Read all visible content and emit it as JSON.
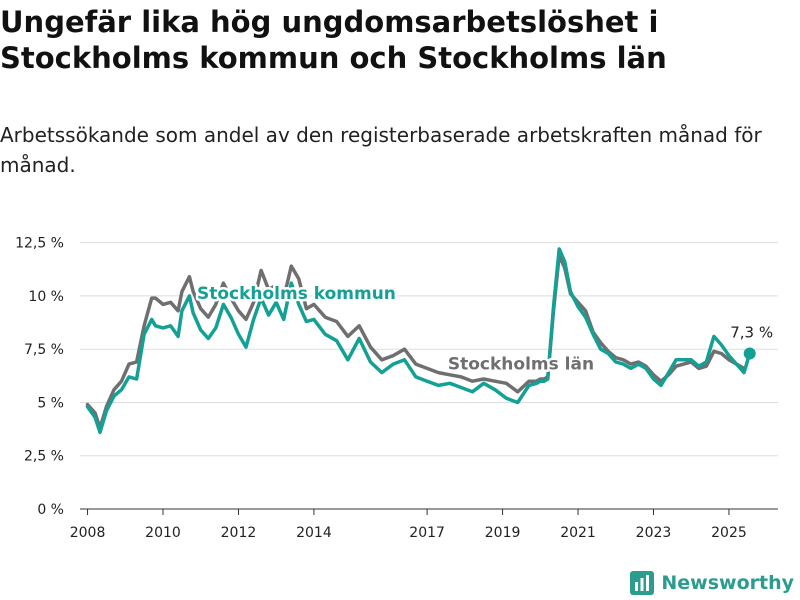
{
  "title": "Ungefär lika hög ungdomsarbetslöshet i Stockholms kommun och Stockholms län",
  "subtitle": "Arbetssökande som andel av den registerbaserade arbetskraften månad för månad.",
  "logo_text": "Newsworthy",
  "colors": {
    "kommun": "#13a095",
    "lan": "#6f6f6f",
    "grid": "#dddddd",
    "logo": "#2a9d8f"
  },
  "chart_data": {
    "type": "line",
    "title": "",
    "xlabel": "",
    "ylabel": "",
    "ylim": [
      0,
      13
    ],
    "yticks": [
      0,
      2.5,
      5,
      7.5,
      10,
      12.5
    ],
    "ytick_labels": [
      "0 %",
      "2,5 %",
      "5 %",
      "7,5 %",
      "10 %",
      "12,5 %"
    ],
    "xticks": [
      2008,
      2010,
      2012,
      2014,
      2017,
      2019,
      2021,
      2023,
      2025
    ],
    "xtick_labels": [
      "2008",
      "2010",
      "2012",
      "2014",
      "2017",
      "2019",
      "2021",
      "2023",
      "2025"
    ],
    "xlim": [
      2007.8,
      2026.3
    ],
    "grid": true,
    "end_label": "7,3 %",
    "series": [
      {
        "name": "Stockholms län",
        "key": "lan",
        "x": [
          2008.0,
          2008.2,
          2008.33,
          2008.5,
          2008.7,
          2008.9,
          2009.1,
          2009.3,
          2009.5,
          2009.7,
          2009.8,
          2010.0,
          2010.2,
          2010.4,
          2010.5,
          2010.7,
          2010.8,
          2011.0,
          2011.2,
          2011.4,
          2011.6,
          2011.8,
          2012.0,
          2012.2,
          2012.4,
          2012.6,
          2012.8,
          2013.0,
          2013.2,
          2013.4,
          2013.6,
          2013.8,
          2014.0,
          2014.3,
          2014.6,
          2014.9,
          2015.2,
          2015.5,
          2015.8,
          2016.1,
          2016.4,
          2016.7,
          2017.0,
          2017.3,
          2017.6,
          2017.9,
          2018.2,
          2018.5,
          2018.8,
          2019.1,
          2019.4,
          2019.7,
          2019.9,
          2020.0,
          2020.1,
          2020.2,
          2020.35,
          2020.5,
          2020.65,
          2020.8,
          2021.0,
          2021.2,
          2021.4,
          2021.6,
          2021.8,
          2022.0,
          2022.2,
          2022.4,
          2022.6,
          2022.8,
          2023.0,
          2023.2,
          2023.4,
          2023.6,
          2023.8,
          2024.0,
          2024.2,
          2024.4,
          2024.6,
          2024.8,
          2025.0,
          2025.2,
          2025.4
        ],
        "y": [
          4.9,
          4.5,
          3.8,
          4.8,
          5.6,
          6.0,
          6.8,
          6.9,
          8.6,
          9.9,
          9.9,
          9.6,
          9.7,
          9.3,
          10.2,
          10.9,
          10.2,
          9.4,
          9.0,
          9.6,
          10.6,
          9.9,
          9.3,
          8.9,
          9.7,
          11.2,
          10.3,
          10.5,
          9.9,
          11.4,
          10.8,
          9.4,
          9.6,
          9.0,
          8.8,
          8.1,
          8.6,
          7.6,
          7.0,
          7.2,
          7.5,
          6.8,
          6.6,
          6.4,
          6.3,
          6.2,
          6.0,
          6.1,
          6.0,
          5.9,
          5.5,
          6.0,
          6.0,
          6.1,
          6.1,
          6.2,
          9.3,
          11.9,
          11.3,
          10.1,
          9.7,
          9.3,
          8.3,
          7.8,
          7.4,
          7.1,
          7.0,
          6.8,
          6.9,
          6.7,
          6.3,
          6.0,
          6.3,
          6.7,
          6.8,
          6.9,
          6.6,
          6.7,
          7.4,
          7.3,
          7.0,
          6.8,
          6.6
        ]
      },
      {
        "name": "Stockholms kommun",
        "key": "kommun",
        "x": [
          2008.0,
          2008.2,
          2008.33,
          2008.5,
          2008.7,
          2008.9,
          2009.1,
          2009.3,
          2009.5,
          2009.7,
          2009.8,
          2010.0,
          2010.2,
          2010.4,
          2010.5,
          2010.7,
          2010.8,
          2011.0,
          2011.2,
          2011.4,
          2011.6,
          2011.8,
          2012.0,
          2012.2,
          2012.4,
          2012.6,
          2012.8,
          2013.0,
          2013.2,
          2013.4,
          2013.6,
          2013.8,
          2014.0,
          2014.3,
          2014.6,
          2014.9,
          2015.2,
          2015.5,
          2015.8,
          2016.1,
          2016.4,
          2016.7,
          2017.0,
          2017.3,
          2017.6,
          2017.9,
          2018.2,
          2018.5,
          2018.8,
          2019.1,
          2019.4,
          2019.7,
          2019.9,
          2020.0,
          2020.1,
          2020.2,
          2020.35,
          2020.5,
          2020.65,
          2020.8,
          2021.0,
          2021.2,
          2021.4,
          2021.6,
          2021.8,
          2022.0,
          2022.2,
          2022.4,
          2022.6,
          2022.8,
          2023.0,
          2023.2,
          2023.4,
          2023.6,
          2023.8,
          2024.0,
          2024.2,
          2024.4,
          2024.6,
          2024.8,
          2025.0,
          2025.2,
          2025.4,
          2025.55
        ],
        "y": [
          4.8,
          4.3,
          3.6,
          4.6,
          5.3,
          5.6,
          6.2,
          6.1,
          8.2,
          8.9,
          8.6,
          8.5,
          8.6,
          8.1,
          9.3,
          10.0,
          9.2,
          8.4,
          8.0,
          8.5,
          9.6,
          9.0,
          8.2,
          7.6,
          8.9,
          9.9,
          9.1,
          9.7,
          8.9,
          10.6,
          9.6,
          8.8,
          8.9,
          8.2,
          7.9,
          7.0,
          8.0,
          6.9,
          6.4,
          6.8,
          7.0,
          6.2,
          6.0,
          5.8,
          5.9,
          5.7,
          5.5,
          5.9,
          5.6,
          5.2,
          5.0,
          5.8,
          5.9,
          6.0,
          6.0,
          6.1,
          9.5,
          12.2,
          11.6,
          10.2,
          9.5,
          9.0,
          8.2,
          7.5,
          7.3,
          6.9,
          6.8,
          6.6,
          6.8,
          6.6,
          6.1,
          5.8,
          6.4,
          7.0,
          7.0,
          7.0,
          6.7,
          6.9,
          8.1,
          7.7,
          7.2,
          6.8,
          6.4,
          7.3
        ]
      }
    ]
  }
}
